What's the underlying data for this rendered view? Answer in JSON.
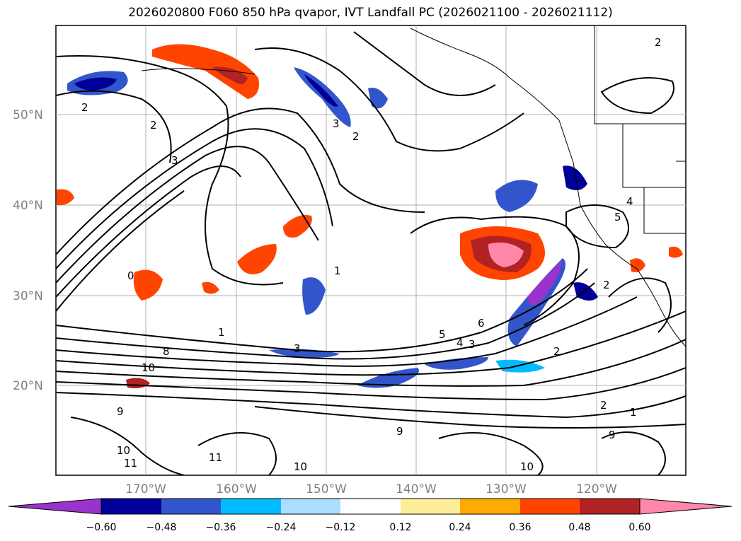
{
  "title": "2026020800 F060 850 hPa qvapor, IVT Landfall PC (2026021100 - 2026021112)",
  "latitude_labels": [
    "50°N",
    "40°N",
    "30°N",
    "20°N"
  ],
  "longitude_labels": [
    "170°W",
    "160°W",
    "150°W",
    "140°W",
    "130°W",
    "120°W"
  ],
  "colorbar": {
    "labels": [
      "−0.60",
      "−0.48",
      "−0.36",
      "−0.24",
      "−0.12",
      "0.12",
      "0.24",
      "0.36",
      "0.48",
      "0.60"
    ],
    "colors": [
      "#9933cc",
      "#000099",
      "#3355cc",
      "#00bbff",
      "#aaddff",
      "#ffffff",
      "#ffee99",
      "#ffaa00",
      "#ff4400",
      "#b22222",
      "#ff88aa"
    ]
  },
  "contour_labels": [
    "2",
    "2",
    "3",
    "3",
    "2",
    "2",
    "0",
    "1",
    "1",
    "8",
    "10",
    "3",
    "5",
    "6",
    "4",
    "3",
    "2",
    "2",
    "9",
    "9",
    "10",
    "11",
    "11",
    "10",
    "10",
    "9",
    "2",
    "1",
    "5",
    "4"
  ]
}
